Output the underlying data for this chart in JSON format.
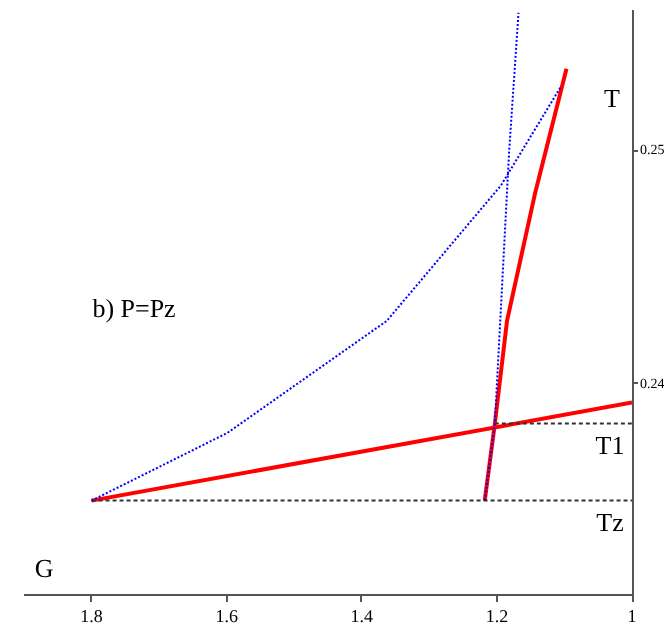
{
  "chart_data": {
    "type": "line",
    "title": "b) P=Pz",
    "xlabel": "G",
    "ylabel": "T",
    "xlim": [
      1.9,
      1
    ],
    "ylim": [
      0.231,
      0.256
    ],
    "xticks": [
      1.8,
      1.6,
      1.4,
      1.2,
      1
    ],
    "yticks": [
      0.24,
      0.25
    ],
    "grid": false,
    "legend": false,
    "marker": "none",
    "annotations": [
      {
        "text": "Tz",
        "x": 1,
        "y": 0.235
      },
      {
        "text": "T1",
        "x": 1,
        "y": 0.2383
      }
    ],
    "series": [
      {
        "color": "#ff0000",
        "line_style": "solid",
        "x": [
          1.8,
          1.0
        ],
        "values": [
          0.235,
          0.2392
        ]
      },
      {
        "color": "#ff0000",
        "line_style": "solid",
        "x": [
          1.218,
          1.203,
          1.185,
          1.144,
          1.097
        ],
        "values": [
          0.235,
          0.2383,
          0.2427,
          0.2481,
          0.2535
        ]
      },
      {
        "color": "#0000ff",
        "line_style": "dotted",
        "x": [
          1.8,
          1.599,
          1.363,
          1.194,
          1.106
        ],
        "values": [
          0.235,
          0.2379,
          0.2427,
          0.2485,
          0.2527
        ]
      },
      {
        "color": "#0000ff",
        "line_style": "dotted",
        "x": [
          1.218,
          1.203,
          1.182,
          1.168
        ],
        "values": [
          0.235,
          0.2383,
          0.2499,
          0.2559
        ]
      },
      {
        "color": "#333333",
        "line_style": "dashed",
        "x": [
          1.8,
          1
        ],
        "values": [
          0.235,
          0.235
        ]
      },
      {
        "color": "#333333",
        "line_style": "dashed",
        "x": [
          1.203,
          1
        ],
        "values": [
          0.2383,
          0.2383
        ]
      }
    ]
  }
}
